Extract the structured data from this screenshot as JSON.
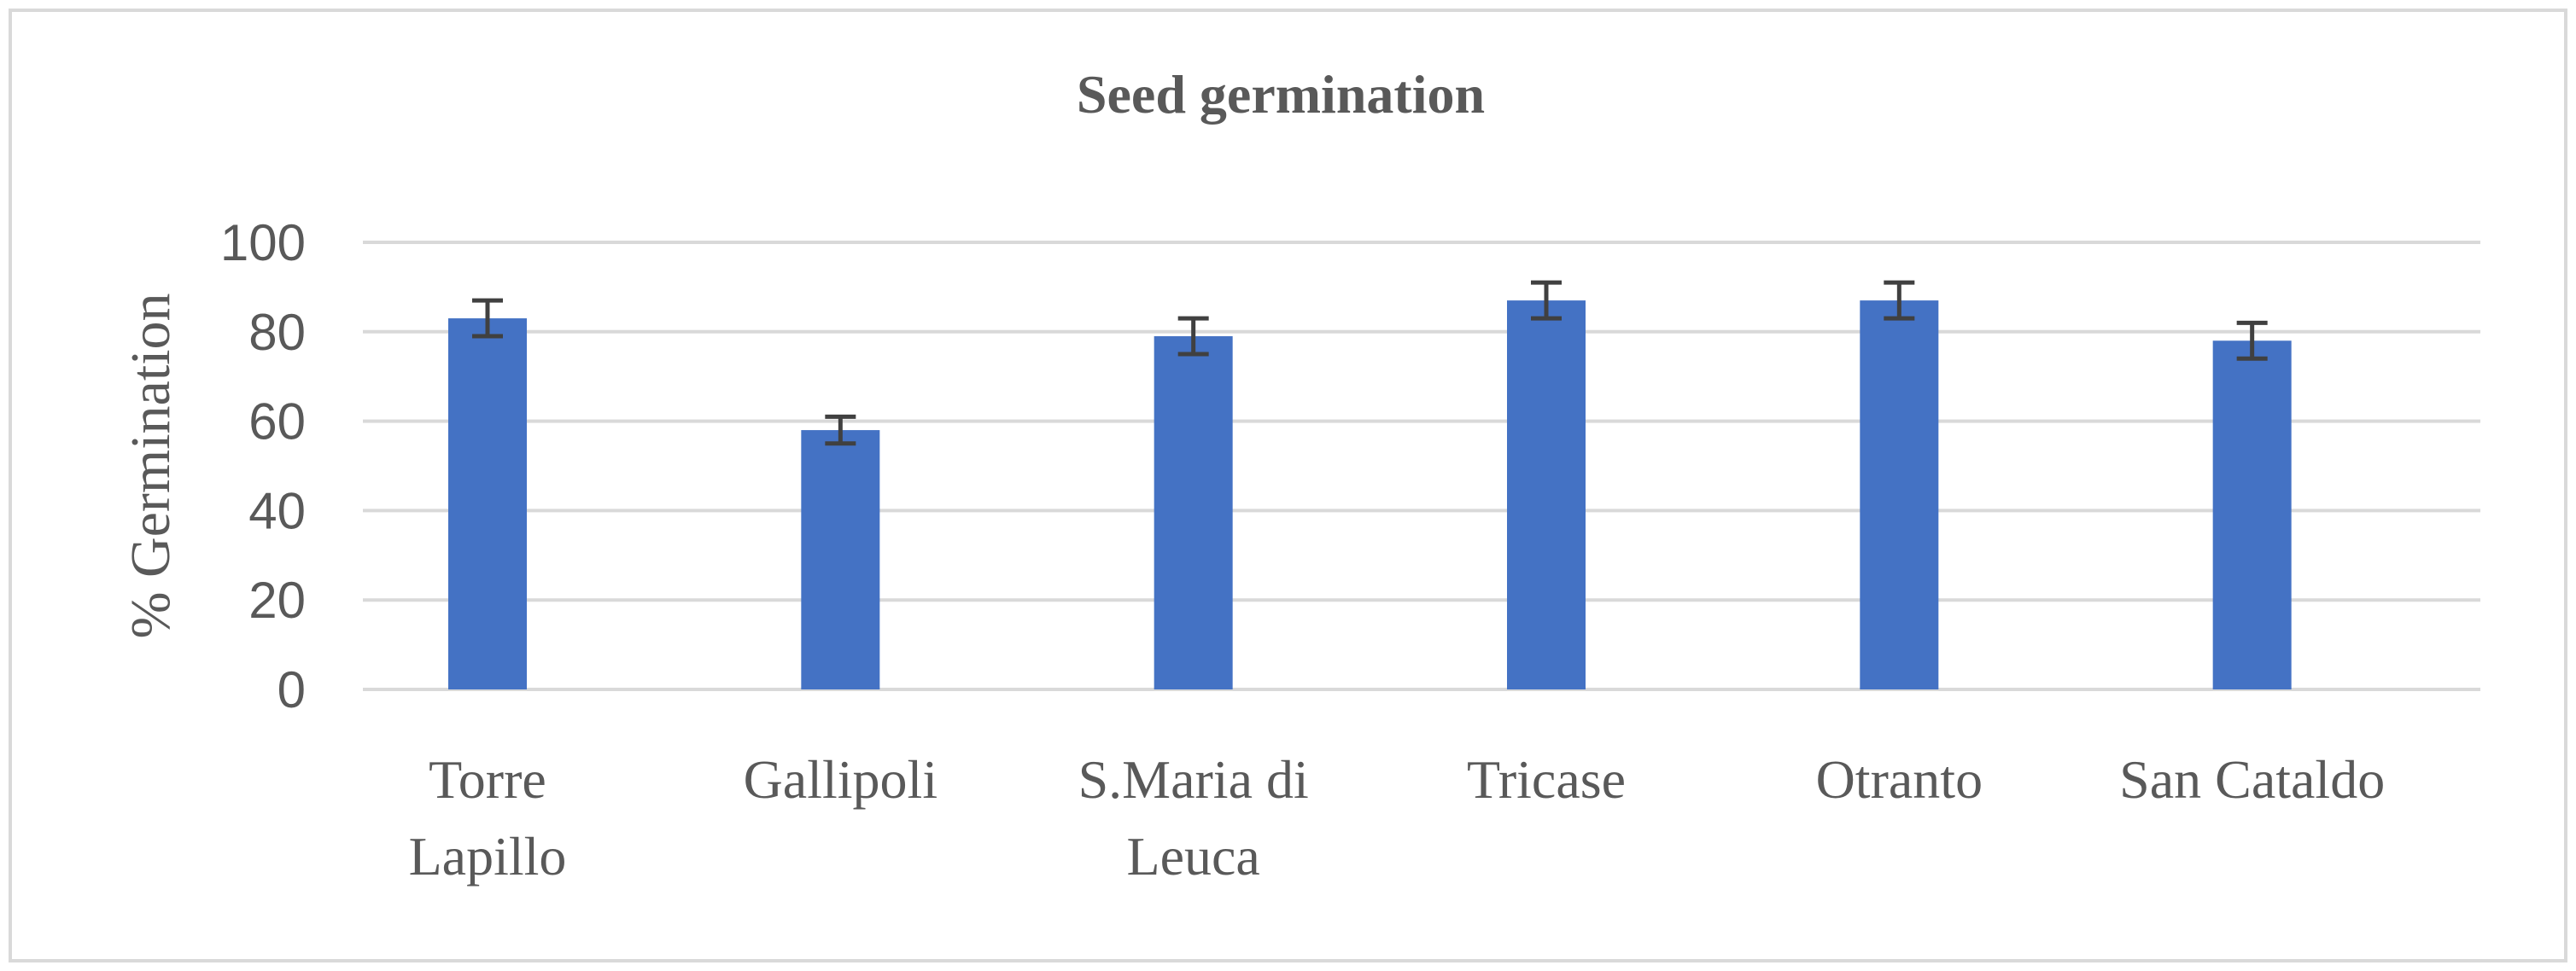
{
  "chart_data": {
    "type": "bar",
    "title": "Seed germination",
    "xlabel": "",
    "ylabel": "% Germination",
    "ylim": [
      0,
      100
    ],
    "yticks": [
      0,
      20,
      40,
      60,
      80,
      100
    ],
    "grid": true,
    "legend": "none",
    "categories": [
      [
        "Torre",
        "Lapillo"
      ],
      [
        "Gallipoli"
      ],
      [
        "S.Maria di",
        "Leuca"
      ],
      [
        "Tricase"
      ],
      [
        "Otranto"
      ],
      [
        "San Cataldo"
      ]
    ],
    "series": [
      {
        "values": [
          83,
          58,
          79,
          87,
          87,
          78
        ],
        "error": [
          4,
          3,
          4,
          4,
          4,
          4
        ],
        "color": "#4472C4"
      }
    ],
    "colors": {
      "bar": "#4472C4",
      "error_bar": "#404040",
      "grid": "#D9D9D9",
      "text": "#595959",
      "frame": "#D9D9D9"
    }
  }
}
